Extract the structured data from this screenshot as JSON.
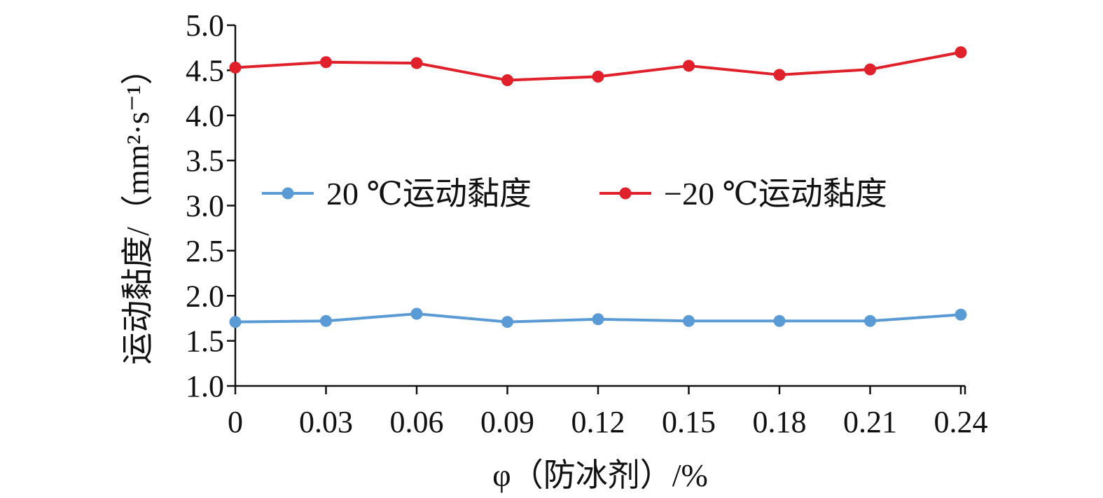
{
  "chart_data": {
    "type": "line",
    "title": "",
    "xlabel": "φ（防冰剂）/%",
    "ylabel": "运动黏度/（mm²·s⁻¹）",
    "x": [
      0,
      0.03,
      0.06,
      0.09,
      0.12,
      0.15,
      0.18,
      0.21,
      0.24
    ],
    "x_tick_labels": [
      "0",
      "0.03",
      "0.06",
      "0.09",
      "0.12",
      "0.15",
      "0.18",
      "0.21",
      "0.24"
    ],
    "y_tick_labels": [
      "1.0",
      "1.5",
      "2.0",
      "2.5",
      "3.0",
      "3.5",
      "4.0",
      "4.5",
      "5.0"
    ],
    "xlim": [
      0,
      0.24
    ],
    "ylim": [
      1.0,
      5.0
    ],
    "grid": false,
    "legend_position": "center",
    "series": [
      {
        "name": "20 ℃运动黏度",
        "color": "#5b9bd5",
        "values": [
          1.71,
          1.72,
          1.8,
          1.71,
          1.74,
          1.72,
          1.72,
          1.72,
          1.79
        ]
      },
      {
        "name": "−20 ℃运动黏度",
        "color": "#e0202a",
        "values": [
          4.53,
          4.59,
          4.58,
          4.39,
          4.43,
          4.55,
          4.45,
          4.51,
          4.7
        ]
      }
    ]
  }
}
